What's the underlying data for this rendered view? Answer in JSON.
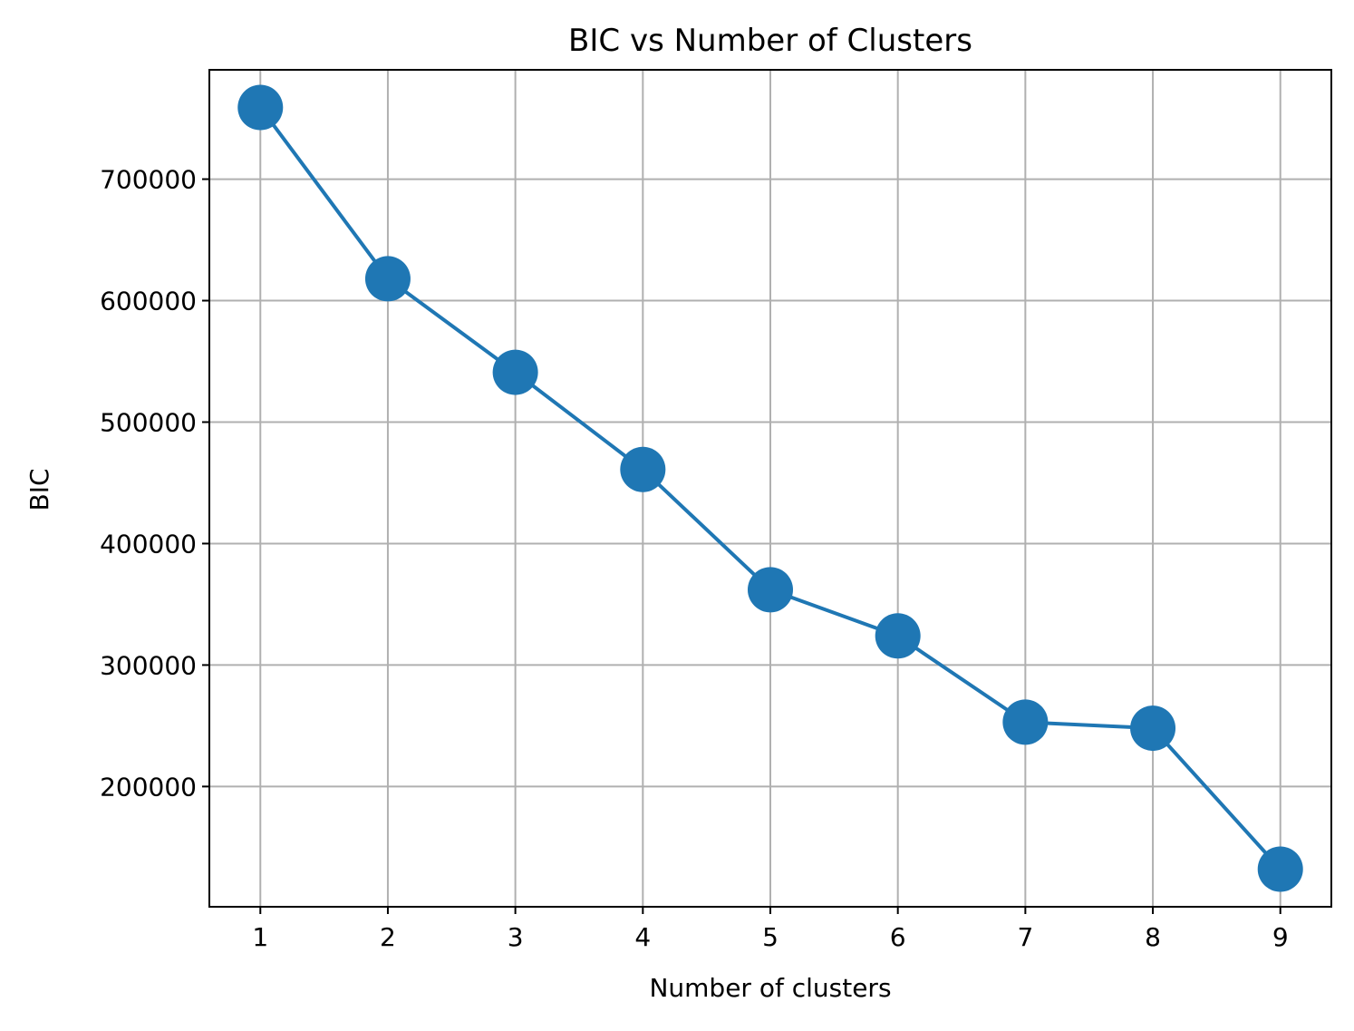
{
  "chart_data": {
    "type": "line",
    "title": "BIC vs Number of Clusters",
    "xlabel": "Number of clusters",
    "ylabel": "BIC",
    "x": [
      1,
      2,
      3,
      4,
      5,
      6,
      7,
      8,
      9
    ],
    "series": [
      {
        "values": [
          759000,
          618000,
          541000,
          461000,
          362000,
          324000,
          253000,
          248000,
          132000
        ],
        "color": "#1f77b4",
        "marker": "circle"
      }
    ],
    "xticks": [
      "1",
      "2",
      "3",
      "4",
      "5",
      "6",
      "7",
      "8",
      "9"
    ],
    "yticks": [
      200000,
      300000,
      400000,
      500000,
      600000,
      700000
    ],
    "ytick_labels": [
      "200000",
      "300000",
      "400000",
      "500000",
      "600000",
      "700000"
    ],
    "xlim": [
      0.6,
      9.4
    ],
    "ylim": [
      101000,
      790000
    ],
    "grid": true
  }
}
